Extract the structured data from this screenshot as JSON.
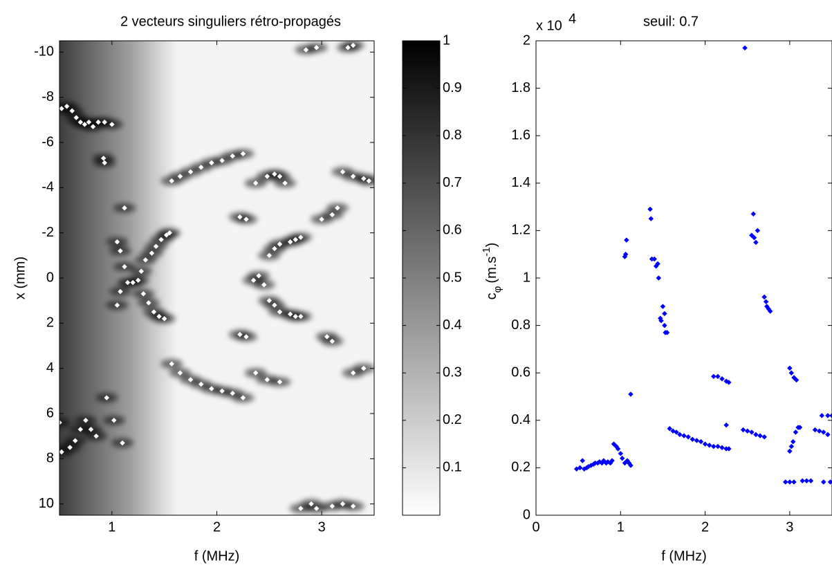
{
  "chart_data": [
    {
      "type": "scatter",
      "title": "2 vecteurs singuliers rétro-propagés",
      "xlabel": "f (MHz)",
      "ylabel": "x (mm)",
      "xlim": [
        0.5,
        3.5
      ],
      "ylim": [
        -10.5,
        10.5
      ],
      "y_reversed": true,
      "xticks": [
        1,
        2,
        3
      ],
      "yticks": [
        -10,
        -8,
        -6,
        -4,
        -2,
        0,
        2,
        4,
        6,
        8,
        10
      ],
      "color": "#ffffff",
      "marker": "diamond",
      "x": [
        0.52,
        0.57,
        0.62,
        0.66,
        0.7,
        0.74,
        0.78,
        0.82,
        0.87,
        0.93,
        1.0,
        0.92,
        0.93,
        1.12,
        1.05,
        1.08,
        1.12,
        1.15,
        1.2,
        1.25,
        1.28,
        1.32,
        1.38,
        1.42,
        1.47,
        1.52,
        1.55,
        1.05,
        1.08,
        1.3,
        1.35,
        1.4,
        1.45,
        1.5,
        1.57,
        1.65,
        1.75,
        1.85,
        1.95,
        2.05,
        2.15,
        2.25,
        1.57,
        1.65,
        1.75,
        1.85,
        1.95,
        2.05,
        2.15,
        2.25,
        0.5,
        0.52,
        0.6,
        0.65,
        0.7,
        0.75,
        0.8,
        0.85,
        0.95,
        1.02,
        1.1,
        2.35,
        2.4,
        2.45,
        2.5,
        2.55,
        2.6,
        2.7,
        2.75,
        2.8,
        2.5,
        2.55,
        2.6,
        2.7,
        2.75,
        2.8,
        2.28,
        2.22,
        2.28,
        2.22,
        2.37,
        2.48,
        2.55,
        2.6,
        2.65,
        2.37,
        2.48,
        2.6,
        3.0,
        3.1,
        3.15,
        3.05,
        3.1,
        3.2,
        3.3,
        3.4,
        3.45,
        3.3,
        3.4,
        2.85,
        2.95,
        3.25,
        3.3,
        2.8,
        2.9,
        2.95,
        3.1,
        3.2,
        3.3
      ],
      "values": [
        -7.5,
        -7.6,
        -7.4,
        -7.1,
        -6.9,
        -6.8,
        -6.9,
        -6.7,
        -6.9,
        -6.9,
        -6.8,
        -5.3,
        -5.1,
        -3.1,
        -1.6,
        -1.2,
        -0.5,
        0.2,
        0.2,
        0.1,
        -0.3,
        -0.8,
        -1.1,
        -1.4,
        -1.7,
        -1.9,
        -2.0,
        1.2,
        0.6,
        0.7,
        1.1,
        1.5,
        1.7,
        1.8,
        -4.3,
        -4.5,
        -4.7,
        -4.9,
        -5.1,
        -5.2,
        -5.4,
        -5.5,
        3.8,
        4.2,
        4.5,
        4.7,
        4.9,
        5.0,
        5.1,
        5.3,
        6.4,
        7.7,
        7.5,
        7.2,
        6.7,
        6.3,
        6.7,
        7.0,
        5.3,
        6.3,
        7.3,
        0.1,
        -0.1,
        0.3,
        1.0,
        1.2,
        1.5,
        1.6,
        1.7,
        1.7,
        -1.0,
        -1.3,
        -1.5,
        -1.6,
        -1.7,
        -1.8,
        -2.6,
        -2.7,
        2.6,
        2.5,
        -4.2,
        -4.5,
        -4.6,
        -4.5,
        -4.2,
        4.2,
        4.5,
        4.6,
        -2.6,
        -2.8,
        -3.1,
        2.6,
        2.8,
        -4.7,
        -4.5,
        -4.4,
        -4.3,
        4.2,
        4.0,
        -10.1,
        -10.2,
        -10.2,
        -10.3,
        10.2,
        10.0,
        10.2,
        10.1,
        10.0,
        10.1
      ],
      "colorbar": {
        "clim": [
          0,
          1
        ],
        "ticks": [
          0.1,
          0.2,
          0.3,
          0.4,
          0.5,
          0.6,
          0.7,
          0.8,
          0.9,
          1
        ],
        "colormap": "gray"
      }
    },
    {
      "type": "scatter",
      "title": "seuil: 0.7",
      "xlabel": "f (MHz)",
      "ylabel": {
        "main": "c",
        "sub": "φ",
        "unit": "(m.s",
        "sup": "-1",
        "close": ")"
      },
      "xlim": [
        0,
        3.5
      ],
      "ylim": [
        0,
        20000
      ],
      "xticks": [
        0,
        1,
        2,
        3
      ],
      "yticks": [
        0,
        {
          "value": 2000,
          "label": "0.2"
        },
        {
          "value": 4000,
          "label": "0.4"
        },
        {
          "value": 6000,
          "label": "0.6"
        },
        {
          "value": 8000,
          "label": "0.8"
        },
        {
          "value": 10000,
          "label": "1"
        },
        {
          "value": 12000,
          "label": "1.2"
        },
        {
          "value": 14000,
          "label": "1.4"
        },
        {
          "value": 16000,
          "label": "1.6"
        },
        {
          "value": 18000,
          "label": "1.8"
        },
        {
          "value": 20000,
          "label": "2"
        }
      ],
      "y_exponent": {
        "base": "x 10",
        "power": "4"
      },
      "color": "#0000ff",
      "marker": "diamond",
      "x": [
        0.48,
        0.52,
        0.55,
        0.57,
        0.6,
        0.62,
        0.65,
        0.68,
        0.7,
        0.73,
        0.75,
        0.78,
        0.8,
        0.83,
        0.85,
        0.88,
        0.9,
        0.92,
        0.95,
        0.97,
        1.0,
        1.02,
        1.05,
        1.08,
        1.1,
        1.12,
        1.05,
        1.06,
        1.07,
        1.12,
        1.35,
        1.36,
        1.37,
        1.4,
        1.42,
        1.44,
        1.45,
        1.47,
        1.48,
        1.5,
        1.52,
        1.53,
        1.55,
        1.52,
        1.58,
        1.62,
        1.66,
        1.7,
        1.75,
        1.8,
        1.85,
        1.9,
        1.95,
        2.0,
        2.05,
        2.1,
        2.15,
        2.2,
        2.25,
        2.28,
        2.1,
        2.15,
        2.2,
        2.25,
        2.28,
        2.25,
        2.47,
        2.55,
        2.57,
        2.58,
        2.6,
        2.62,
        2.7,
        2.72,
        2.73,
        2.75,
        2.77,
        2.45,
        2.5,
        2.55,
        2.6,
        2.65,
        2.7,
        3.0,
        3.02,
        3.05,
        3.08,
        3.0,
        3.02,
        3.04,
        3.07,
        3.1,
        3.12,
        2.95,
        3.0,
        3.05,
        3.15,
        3.2,
        3.25,
        3.4,
        3.48,
        3.3,
        3.35,
        3.4,
        3.45,
        3.38,
        3.45,
        3.5
      ],
      "values": [
        1950,
        2000,
        2300,
        1950,
        2000,
        2050,
        2100,
        2150,
        2200,
        2200,
        2250,
        2200,
        2300,
        2200,
        2250,
        2200,
        2300,
        3000,
        2900,
        2800,
        2600,
        2400,
        2200,
        2300,
        2200,
        2100,
        10900,
        11000,
        11600,
        5100,
        12900,
        12500,
        10800,
        10800,
        10500,
        10600,
        10000,
        8300,
        8200,
        8800,
        8000,
        7700,
        7700,
        8500,
        3650,
        3550,
        3500,
        3400,
        3350,
        3300,
        3200,
        3150,
        3100,
        3000,
        2950,
        2900,
        2900,
        2850,
        2800,
        2800,
        5850,
        5850,
        5750,
        5650,
        5600,
        3800,
        19700,
        11800,
        12700,
        11700,
        11500,
        12000,
        9200,
        9000,
        8800,
        8700,
        8600,
        3600,
        3550,
        3500,
        3400,
        3350,
        3300,
        6200,
        6000,
        5800,
        5700,
        2700,
        2900,
        3100,
        3500,
        3700,
        3700,
        1400,
        1400,
        1400,
        1450,
        1450,
        1450,
        1400,
        1400,
        3600,
        3550,
        3500,
        3400,
        4200,
        4200,
        4200
      ]
    }
  ]
}
